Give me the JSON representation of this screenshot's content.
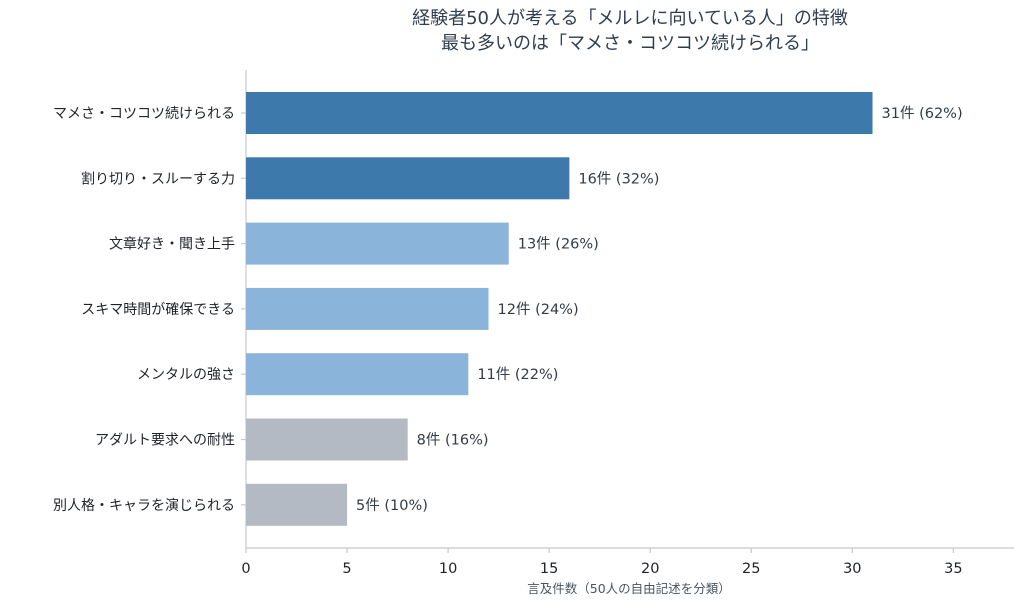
{
  "chart_data": {
    "type": "bar",
    "orientation": "horizontal",
    "title_lines": [
      "経験者50人が考える「メルレに向いている人」の特徴",
      "最も多いのは「マメさ・コツコツ続けられる」"
    ],
    "xlabel": "言及件数（50人の自由記述を分類）",
    "ylabel": "",
    "xlim": [
      0,
      38
    ],
    "xticks": [
      0,
      5,
      10,
      15,
      20,
      25,
      30,
      35
    ],
    "grid": false,
    "categories": [
      "マメさ・コツコツ続けられる",
      "割り切り・スルーする力",
      "文章好き・聞き上手",
      "スキマ時間が確保できる",
      "メンタルの強さ",
      "アダルト要求への耐性",
      "別人格・キャラを演じられる"
    ],
    "values": [
      31,
      16,
      13,
      12,
      11,
      8,
      5
    ],
    "value_labels": [
      "31件 (62%)",
      "16件 (32%)",
      "13件 (26%)",
      "12件 (24%)",
      "11件 (22%)",
      "8件 (16%)",
      "5件 (10%)"
    ],
    "bar_colors": [
      "#3d7aab",
      "#3d7aab",
      "#8ab4d9",
      "#8ab4d9",
      "#8ab4d9",
      "#b3bac4",
      "#b3bac4"
    ],
    "colors": {
      "title": "#2f3e4e",
      "axis": "#c8c8c8"
    }
  }
}
